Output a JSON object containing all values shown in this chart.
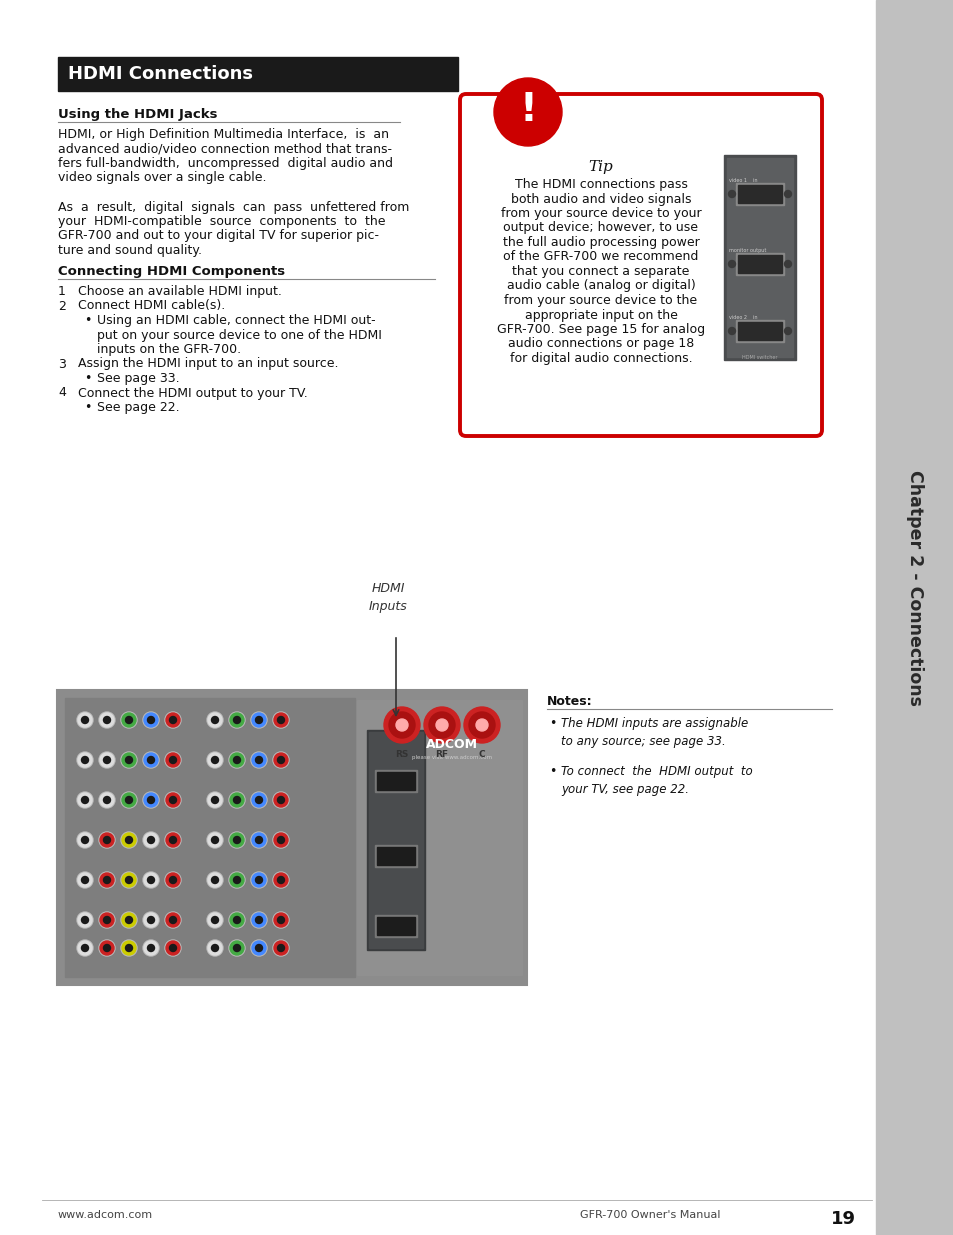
{
  "page_bg": "#ffffff",
  "sidebar_bg": "#c0c0c0",
  "sidebar_text": "Chatper 2 - Connections",
  "header_bar_color": "#1a1a1a",
  "header_bar_text": "HDMI Connections",
  "header_bar_text_color": "#ffffff",
  "section1_title": "Using the HDMI Jacks",
  "section1_body_lines": [
    "HDMI, or High Definition Multimedia Interface,  is  an",
    "advanced audio/video connection method that trans-",
    "fers full-bandwidth,  uncompressed  digital audio and",
    "video signals over a single cable.",
    "",
    "As  a  result,  digital  signals  can  pass  unfettered from",
    "your  HDMI-compatible  source  components  to  the",
    "GFR-700 and out to your digital TV for superior pic-",
    "ture and sound quality."
  ],
  "section2_title": "Connecting HDMI Components",
  "section2_items": [
    {
      "indent": 0,
      "num": "1",
      "text": "Choose an available HDMI input."
    },
    {
      "indent": 0,
      "num": "2",
      "text": "Connect HDMI cable(s)."
    },
    {
      "indent": 1,
      "num": "•",
      "text": "Using an HDMI cable, connect the HDMI out-"
    },
    {
      "indent": 2,
      "num": "",
      "text": "put on your source device to one of the HDMI"
    },
    {
      "indent": 2,
      "num": "",
      "text": "inputs on the GFR-700."
    },
    {
      "indent": 0,
      "num": "3",
      "text": "Assign the HDMI input to an input source."
    },
    {
      "indent": 1,
      "num": "•",
      "text": "See page 33."
    },
    {
      "indent": 0,
      "num": "4",
      "text": "Connect the HDMI output to your TV."
    },
    {
      "indent": 1,
      "num": "•",
      "text": "See page 22."
    }
  ],
  "tip_border_color": "#cc0000",
  "tip_title": "Tip",
  "tip_body_lines": [
    "The HDMI connections pass",
    "both audio and video signals",
    "from your source device to your",
    "output device; however, to use",
    "the full audio processing power",
    "of the GFR-700 we recommend",
    "that you connect a separate",
    "audio cable (analog or digital)",
    "from your source device to the",
    "appropriate input on the",
    "GFR-700. See page 15 for analog",
    "audio connections or page 18",
    "for digital audio connections."
  ],
  "tip_icon_color": "#cc0000",
  "notes_title": "Notes:",
  "notes_items": [
    "The HDMI inputs are assignable\nto any source; see page 33.",
    "To connect  the  HDMI output  to\nyour TV, see page 22."
  ],
  "hdmi_label_line1": "HDMI",
  "hdmi_label_line2": "Inputs",
  "footer_left": "www.adcom.com",
  "footer_right": "GFR-700 Owner's Manual",
  "footer_page": "19"
}
